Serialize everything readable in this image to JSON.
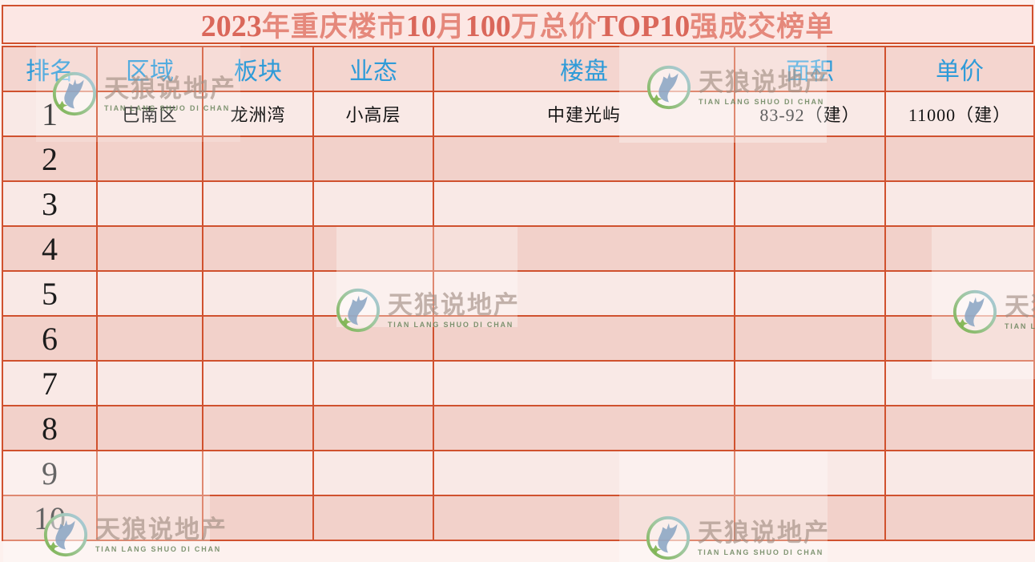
{
  "title": {
    "full": "2023年重庆楼市10月100万总价TOP10强成交榜单",
    "segments": [
      {
        "text": "2023",
        "strong": true
      },
      {
        "text": "年重庆楼市",
        "strong": false
      },
      {
        "text": "10",
        "strong": true
      },
      {
        "text": "月",
        "strong": false
      },
      {
        "text": "100",
        "strong": true
      },
      {
        "text": "万总价",
        "strong": false
      },
      {
        "text": "TOP10",
        "strong": true
      },
      {
        "text": "强成交榜单",
        "strong": false
      }
    ]
  },
  "chart_data": {
    "type": "table",
    "title": "2023年重庆楼市10月100万总价TOP10强成交榜单",
    "columns": [
      "排名",
      "区域",
      "板块",
      "业态",
      "楼盘",
      "面积",
      "单价"
    ],
    "rows": [
      [
        "1",
        "巴南区",
        "龙洲湾",
        "小高层",
        "中建光屿",
        "83-92（建）",
        "11000（建）"
      ],
      [
        "2",
        "",
        "",
        "",
        "",
        "",
        ""
      ],
      [
        "3",
        "",
        "",
        "",
        "",
        "",
        ""
      ],
      [
        "4",
        "",
        "",
        "",
        "",
        "",
        ""
      ],
      [
        "5",
        "",
        "",
        "",
        "",
        "",
        ""
      ],
      [
        "6",
        "",
        "",
        "",
        "",
        "",
        ""
      ],
      [
        "7",
        "",
        "",
        "",
        "",
        "",
        ""
      ],
      [
        "8",
        "",
        "",
        "",
        "",
        "",
        ""
      ],
      [
        "9",
        "",
        "",
        "",
        "",
        "",
        ""
      ],
      [
        "10",
        "",
        "",
        "",
        "",
        "",
        ""
      ]
    ]
  },
  "watermark": {
    "zh": "天狼说地产",
    "en": "TIAN LANG SHUO DI CHAN"
  },
  "colors": {
    "border": "#d0512e",
    "title_text": "#e5887b",
    "title_numbers": "#da675a",
    "header_text": "#2f9bd8",
    "row_light": "#f9e9e6",
    "row_dark": "#f2d1ca",
    "page_background": "#fdf1ee"
  }
}
